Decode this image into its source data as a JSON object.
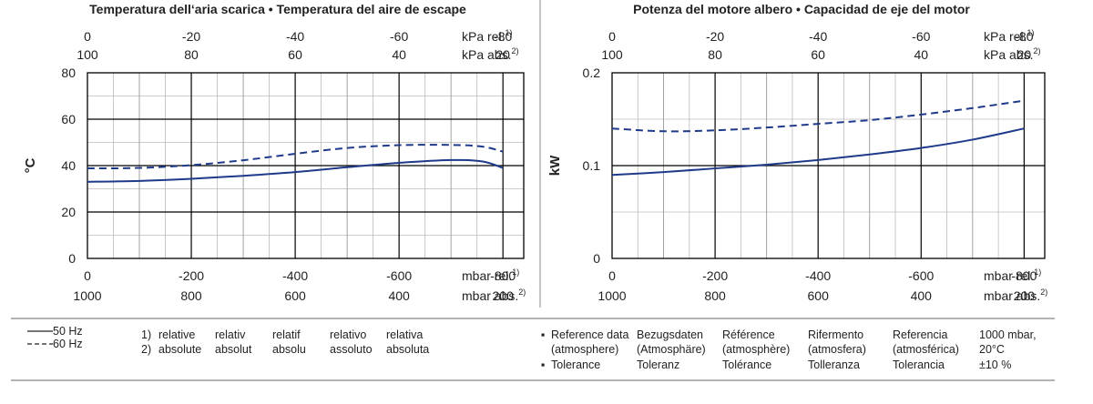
{
  "chart_data": [
    {
      "type": "line",
      "title": "Temperatura dell‘aria scarica  •  Temperatura del aire de escape",
      "ylabel": "°C",
      "ylim": [
        0,
        80
      ],
      "yticks": [
        "0",
        "20",
        "40",
        "60",
        "80"
      ],
      "xlim": [
        0,
        -840
      ],
      "xticks_bottom_rel": [
        "0",
        "-200",
        "-400",
        "-600",
        "-800"
      ],
      "xticks_bottom_abs": [
        "1000",
        "800",
        "600",
        "400",
        "200"
      ],
      "xunit_bottom_rel": "mbar rel.",
      "xunit_bottom_abs": "mbar abs.",
      "xticks_top_rel": [
        "0",
        "-20",
        "-40",
        "-60",
        "-80"
      ],
      "xticks_top_abs": [
        "100",
        "80",
        "60",
        "40",
        "20"
      ],
      "xunit_top_rel": "kPa rel.",
      "xunit_top_abs": "kPa abs.",
      "sup_rel": "1)",
      "sup_abs": "2)",
      "grid": true,
      "series": [
        {
          "name": "50 Hz",
          "style": "solid",
          "x": [
            0,
            -100,
            -200,
            -300,
            -400,
            -500,
            -600,
            -700,
            -760,
            -800
          ],
          "y": [
            33,
            33.4,
            34.3,
            35.6,
            37.2,
            39.3,
            41.2,
            42.4,
            41.8,
            39
          ]
        },
        {
          "name": "60 Hz",
          "style": "dashed",
          "x": [
            0,
            -100,
            -200,
            -300,
            -400,
            -500,
            -600,
            -700,
            -760,
            -800
          ],
          "y": [
            38.8,
            39,
            40.2,
            42.3,
            45.1,
            47.6,
            48.8,
            48.9,
            48.2,
            46
          ]
        }
      ]
    },
    {
      "type": "line",
      "title": "Potenza del motore albero  •  Capacidad de eje del motor",
      "ylabel": "kW",
      "ylim": [
        0,
        0.2
      ],
      "yticks": [
        "0",
        "0.1",
        "0.2"
      ],
      "xlim": [
        0,
        -840
      ],
      "xticks_bottom_rel": [
        "0",
        "-200",
        "-400",
        "-600",
        "-800"
      ],
      "xticks_bottom_abs": [
        "1000",
        "800",
        "600",
        "400",
        "200"
      ],
      "xunit_bottom_rel": "mbar rel.",
      "xunit_bottom_abs": "mbar abs.",
      "xticks_top_rel": [
        "0",
        "-20",
        "-40",
        "-60",
        "-80"
      ],
      "xticks_top_abs": [
        "100",
        "80",
        "60",
        "40",
        "20"
      ],
      "xunit_top_rel": "kPa rel.",
      "xunit_top_abs": "kPa abs.",
      "sup_rel": "1)",
      "sup_abs": "2)",
      "grid": true,
      "series": [
        {
          "name": "50 Hz",
          "style": "solid",
          "x": [
            0,
            -100,
            -200,
            -300,
            -400,
            -500,
            -600,
            -700,
            -800
          ],
          "y": [
            0.09,
            0.093,
            0.097,
            0.101,
            0.106,
            0.112,
            0.119,
            0.128,
            0.14
          ]
        },
        {
          "name": "60 Hz",
          "style": "dashed",
          "x": [
            0,
            -100,
            -200,
            -300,
            -400,
            -500,
            -600,
            -700,
            -800
          ],
          "y": [
            0.14,
            0.137,
            0.138,
            0.141,
            0.145,
            0.149,
            0.155,
            0.162,
            0.17
          ]
        }
      ]
    }
  ],
  "colors": {
    "series": "#1f3a8a",
    "grid": "#000000",
    "minor_grid": "#bbbbbb",
    "divider": "#888888"
  },
  "legend": {
    "items": [
      {
        "label": "50 Hz",
        "style": "solid"
      },
      {
        "label": "60 Hz",
        "style": "dashed"
      }
    ]
  },
  "footnotes": {
    "markers": [
      "1)",
      "2)"
    ],
    "columns": [
      {
        "rel": "relative",
        "abs": "absolute"
      },
      {
        "rel": "relativ",
        "abs": "absolut"
      },
      {
        "rel": "relatif",
        "abs": "absolu"
      },
      {
        "rel": "relativo",
        "abs": "assoluto"
      },
      {
        "rel": "relativa",
        "abs": "absoluta"
      }
    ]
  },
  "reference": {
    "bullets": [
      "▪",
      "▪"
    ],
    "columns": [
      {
        "l1": "Reference data",
        "l2": "(atmosphere)",
        "l3": "Tolerance"
      },
      {
        "l1": "Bezugsdaten",
        "l2": "(Atmosphäre)",
        "l3": "Toleranz"
      },
      {
        "l1": "Référence",
        "l2": "(atmosphère)",
        "l3": "Tolérance"
      },
      {
        "l1": "Rifermento",
        "l2": "(atmosfera)",
        "l3": "Tolleranza"
      },
      {
        "l1": "Referencia",
        "l2": "(atmosférica)",
        "l3": "Tolerancia"
      },
      {
        "l1": "1000 mbar,",
        "l2": "20°C",
        "l3": "±10 %"
      }
    ]
  }
}
